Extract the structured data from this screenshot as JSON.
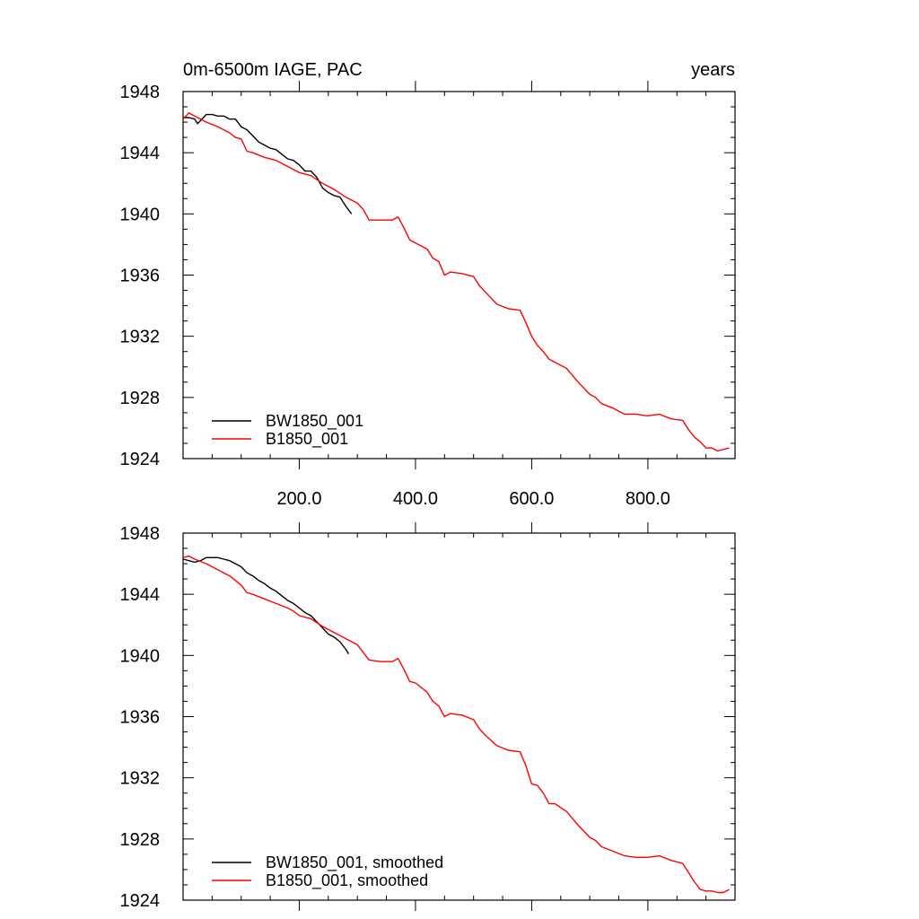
{
  "chart_data": [
    {
      "type": "line",
      "title": "0m-6500m IAGE, PAC",
      "title_right": "years",
      "xlim": [
        0,
        950
      ],
      "ylim": [
        1924,
        1948
      ],
      "yticks": [
        1948,
        1944,
        1940,
        1936,
        1932,
        1928,
        1924
      ],
      "xticks": [
        200,
        400,
        600,
        800
      ],
      "xtick_labels": [
        "200.0",
        "400.0",
        "600.0",
        "800.0"
      ],
      "legend": "bottom-left",
      "colors": {
        "BW1850_001": "#000000",
        "B1850_001": "#ff0000"
      },
      "series": [
        {
          "name": "BW1850_001",
          "color": "#000000",
          "x": [
            0,
            10,
            20,
            25,
            30,
            40,
            50,
            60,
            70,
            80,
            90,
            100,
            110,
            120,
            130,
            140,
            150,
            160,
            170,
            180,
            190,
            200,
            210,
            220,
            230,
            240,
            250,
            260,
            270,
            280,
            290
          ],
          "y": [
            1946.3,
            1946.3,
            1946.2,
            1945.9,
            1946.1,
            1946.5,
            1946.5,
            1946.4,
            1946.4,
            1946.2,
            1946.2,
            1945.7,
            1945.5,
            1945.1,
            1944.7,
            1944.5,
            1944.3,
            1944.2,
            1943.9,
            1943.6,
            1943.5,
            1943.2,
            1942.8,
            1942.8,
            1942.4,
            1941.7,
            1941.4,
            1941.2,
            1941.1,
            1940.5,
            1940.0
          ]
        },
        {
          "name": "B1850_001",
          "color": "#ff0000",
          "x": [
            0,
            10,
            20,
            40,
            60,
            80,
            90,
            100,
            110,
            120,
            140,
            160,
            180,
            190,
            200,
            220,
            240,
            260,
            280,
            300,
            310,
            320,
            340,
            360,
            370,
            380,
            390,
            400,
            420,
            430,
            440,
            450,
            460,
            480,
            500,
            510,
            520,
            540,
            560,
            580,
            590,
            600,
            610,
            620,
            630,
            640,
            660,
            680,
            700,
            710,
            720,
            740,
            760,
            780,
            800,
            820,
            840,
            860,
            870,
            880,
            890,
            900,
            910,
            920,
            940
          ],
          "y": [
            1946.2,
            1946.6,
            1946.4,
            1946.0,
            1945.7,
            1945.3,
            1945.0,
            1944.9,
            1944.1,
            1944.0,
            1943.7,
            1943.5,
            1943.1,
            1942.9,
            1942.7,
            1942.5,
            1942.0,
            1941.6,
            1941.1,
            1940.7,
            1940.3,
            1939.6,
            1939.6,
            1939.6,
            1939.8,
            1939.1,
            1938.3,
            1938.1,
            1937.7,
            1937.1,
            1936.9,
            1936.0,
            1936.2,
            1936.1,
            1935.9,
            1935.3,
            1934.9,
            1934.1,
            1933.8,
            1933.7,
            1932.9,
            1932.0,
            1931.4,
            1931.0,
            1930.5,
            1930.3,
            1929.9,
            1929.0,
            1928.2,
            1928.0,
            1927.6,
            1927.3,
            1926.9,
            1926.9,
            1926.8,
            1926.9,
            1926.6,
            1926.5,
            1925.9,
            1925.4,
            1925.1,
            1924.7,
            1924.7,
            1924.5,
            1924.7
          ]
        }
      ]
    },
    {
      "type": "line",
      "xlim": [
        0,
        950
      ],
      "ylim": [
        1924,
        1948
      ],
      "yticks": [
        1948,
        1944,
        1940,
        1936,
        1932,
        1928,
        1924
      ],
      "xticks": [
        200,
        400,
        600,
        800
      ],
      "legend": "bottom-left",
      "colors": {
        "BW1850_001, smoothed": "#000000",
        "B1850_001, smoothed": "#ff0000"
      },
      "series": [
        {
          "name": "BW1850_001, smoothed",
          "color": "#000000",
          "x": [
            0,
            10,
            20,
            30,
            40,
            50,
            60,
            70,
            80,
            90,
            100,
            110,
            120,
            130,
            140,
            150,
            160,
            170,
            180,
            190,
            200,
            210,
            220,
            230,
            240,
            250,
            260,
            270,
            280,
            285
          ],
          "y": [
            1946.3,
            1946.2,
            1946.1,
            1946.2,
            1946.4,
            1946.4,
            1946.4,
            1946.3,
            1946.2,
            1946.0,
            1945.8,
            1945.4,
            1945.2,
            1944.9,
            1944.7,
            1944.4,
            1944.2,
            1943.9,
            1943.6,
            1943.4,
            1943.1,
            1942.8,
            1942.6,
            1942.2,
            1941.8,
            1941.4,
            1941.2,
            1940.9,
            1940.4,
            1940.1
          ]
        },
        {
          "name": "B1850_001, smoothed",
          "color": "#ff0000",
          "x": [
            0,
            10,
            20,
            40,
            60,
            80,
            90,
            100,
            110,
            120,
            140,
            160,
            180,
            190,
            200,
            220,
            240,
            260,
            280,
            300,
            310,
            320,
            340,
            360,
            370,
            380,
            390,
            400,
            420,
            430,
            440,
            450,
            460,
            480,
            500,
            510,
            520,
            540,
            560,
            580,
            590,
            600,
            610,
            620,
            630,
            640,
            660,
            680,
            700,
            710,
            720,
            740,
            760,
            780,
            800,
            820,
            840,
            860,
            870,
            880,
            890,
            900,
            910,
            920,
            930,
            940
          ],
          "y": [
            1946.4,
            1946.5,
            1946.3,
            1946.0,
            1945.6,
            1945.2,
            1944.9,
            1944.6,
            1944.1,
            1944.0,
            1943.7,
            1943.4,
            1943.1,
            1942.9,
            1942.6,
            1942.4,
            1941.9,
            1941.5,
            1941.1,
            1940.7,
            1940.2,
            1939.7,
            1939.6,
            1939.6,
            1939.8,
            1939.1,
            1938.3,
            1938.2,
            1937.6,
            1937.0,
            1936.7,
            1936.0,
            1936.2,
            1936.1,
            1935.8,
            1935.2,
            1934.8,
            1934.1,
            1933.8,
            1933.7,
            1932.8,
            1931.6,
            1931.5,
            1931.0,
            1930.3,
            1930.3,
            1929.8,
            1928.9,
            1928.1,
            1927.9,
            1927.5,
            1927.2,
            1926.9,
            1926.8,
            1926.8,
            1926.9,
            1926.6,
            1926.4,
            1925.8,
            1925.2,
            1924.7,
            1924.6,
            1924.6,
            1924.5,
            1924.5,
            1924.7
          ]
        }
      ]
    }
  ]
}
